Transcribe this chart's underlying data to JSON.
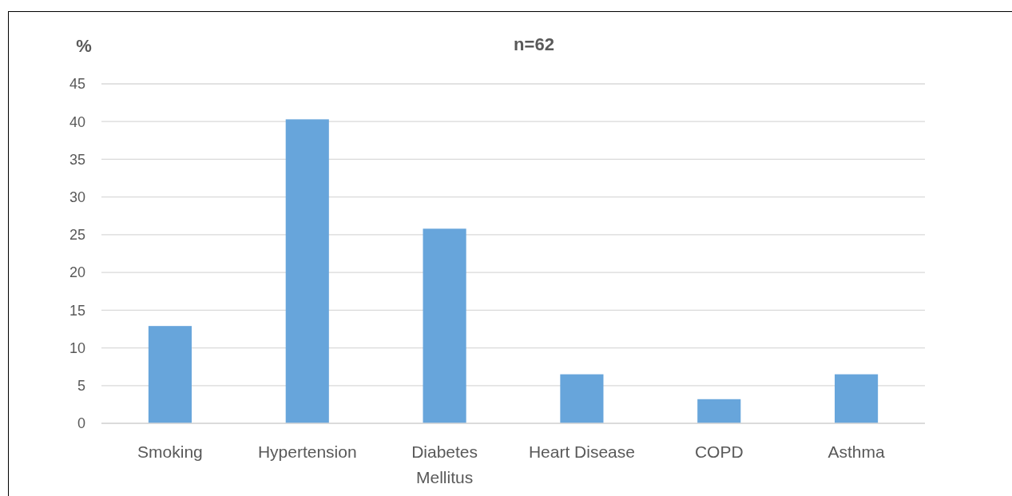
{
  "chart_data": {
    "type": "bar",
    "title": "n=62",
    "ylabel": "%",
    "categories": [
      "Smoking",
      "Hypertension",
      "Diabetes Mellitus",
      "Heart Disease",
      "COPD",
      "Asthma"
    ],
    "values": [
      12.9,
      40.3,
      25.8,
      6.5,
      3.2,
      6.5
    ],
    "color": "#67a5db",
    "ylim": [
      0,
      45
    ],
    "yticks": [
      0,
      5,
      10,
      15,
      20,
      25,
      30,
      35,
      40,
      45
    ],
    "grid": "y"
  }
}
